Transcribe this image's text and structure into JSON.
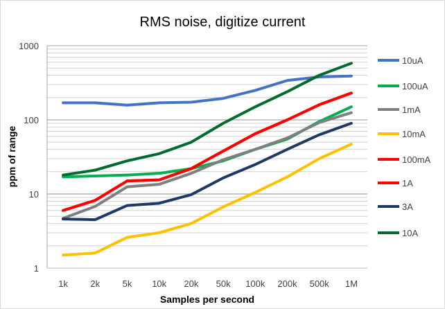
{
  "chart_data": {
    "type": "line",
    "title": "RMS noise, digitize current",
    "xlabel": "Samples per second",
    "ylabel": "ppm of range",
    "yscale": "log",
    "ylim": [
      1,
      1000
    ],
    "yticks": [
      "1",
      "10",
      "100",
      "1000"
    ],
    "grid": true,
    "legend": "right",
    "categories": [
      "1k",
      "2k",
      "5k",
      "10k",
      "20k",
      "50k",
      "100k",
      "200k",
      "500k",
      "1M"
    ],
    "series": [
      {
        "name": "10uA",
        "color": "#4472c4",
        "values": [
          170,
          170,
          158,
          170,
          173,
          195,
          250,
          340,
          380,
          390
        ]
      },
      {
        "name": "100uA",
        "color": "#00b050",
        "values": [
          17,
          17.5,
          18,
          19,
          22,
          28,
          40,
          55,
          95,
          150
        ]
      },
      {
        "name": "1mA",
        "color": "#7f7f7f",
        "values": [
          4.7,
          6.8,
          12.5,
          13.5,
          19,
          29,
          40,
          57,
          92,
          125
        ]
      },
      {
        "name": "10mA",
        "color": "#ffc000",
        "values": [
          1.5,
          1.6,
          2.6,
          3.0,
          4.0,
          6.7,
          10.5,
          17,
          30,
          47
        ]
      },
      {
        "name": "100mA",
        "color": "#ff0000",
        "values": [
          6,
          8.2,
          15,
          15.5,
          22,
          38,
          65,
          100,
          160,
          230
        ]
      },
      {
        "name": "1A",
        "color": "#ff0000",
        "values": [
          6,
          8.2,
          15,
          15.5,
          22,
          38,
          65,
          100,
          160,
          230
        ]
      },
      {
        "name": "3A",
        "color": "#203864",
        "values": [
          4.6,
          4.5,
          7.0,
          7.5,
          9.8,
          16.5,
          25,
          40,
          63,
          90
        ]
      },
      {
        "name": "10A",
        "color": "#006b2d",
        "values": [
          18,
          21,
          28,
          35,
          50,
          90,
          150,
          240,
          400,
          580
        ]
      }
    ]
  }
}
